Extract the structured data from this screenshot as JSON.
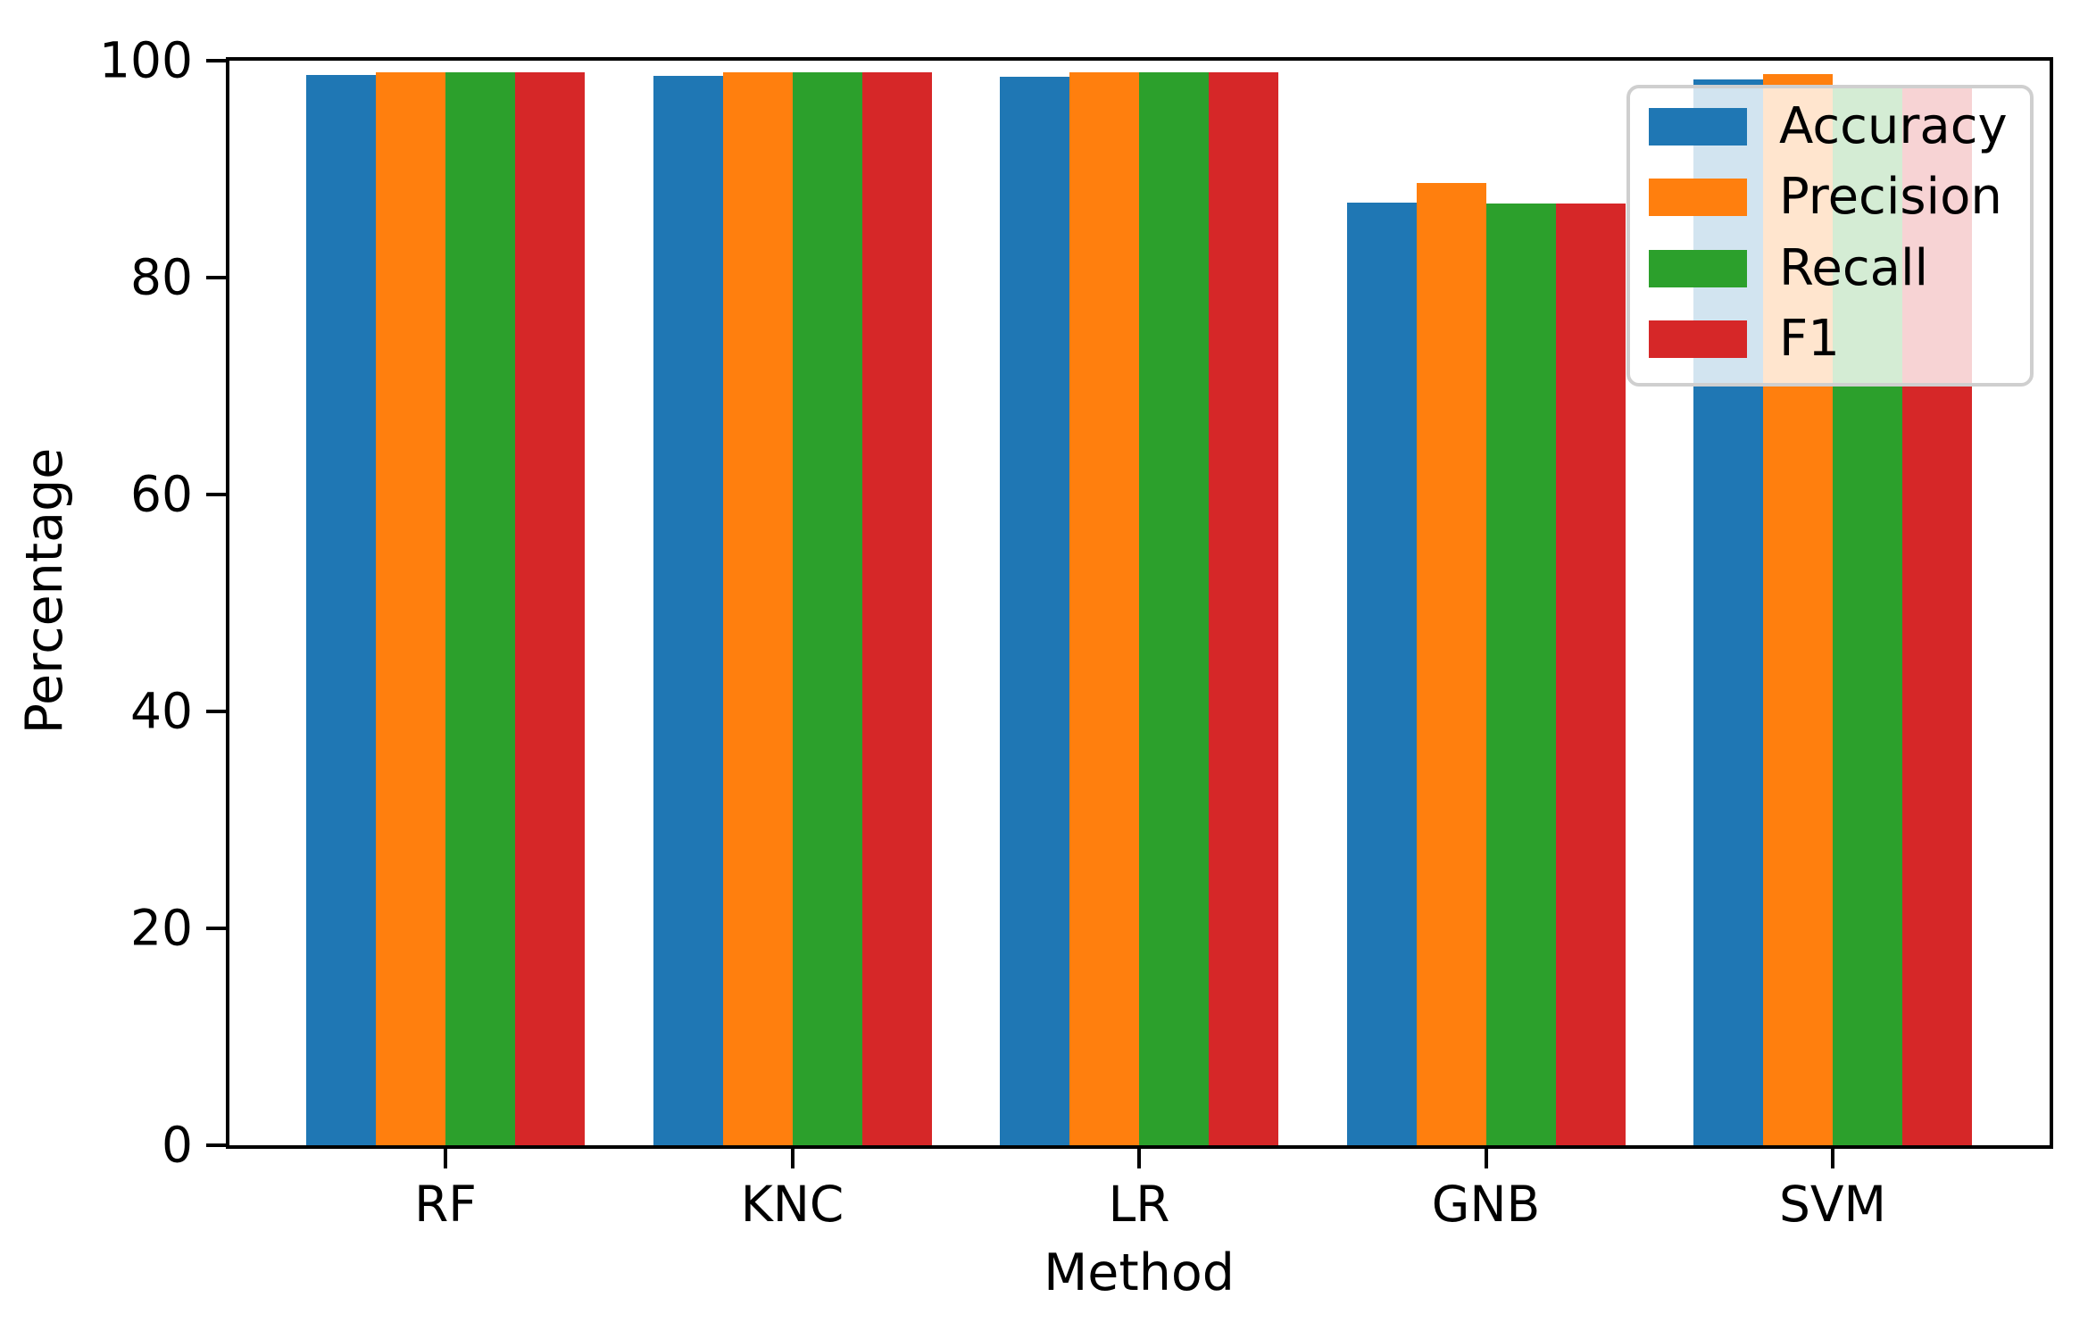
{
  "chart_data": {
    "type": "bar",
    "title": "",
    "xlabel": "Method",
    "ylabel": "Percentage",
    "categories": [
      "RF",
      "KNC",
      "LR",
      "GNB",
      "SVM"
    ],
    "series": [
      {
        "name": "Accuracy",
        "color": "#1f77b4",
        "values": [
          98.7,
          98.6,
          98.5,
          86.9,
          98.3
        ]
      },
      {
        "name": "Precision",
        "color": "#ff7f0e",
        "values": [
          98.9,
          98.9,
          98.9,
          88.7,
          98.8
        ]
      },
      {
        "name": "Recall",
        "color": "#2ca02c",
        "values": [
          98.9,
          98.9,
          98.9,
          86.8,
          97.8
        ]
      },
      {
        "name": "F1",
        "color": "#d62728",
        "values": [
          98.9,
          98.9,
          98.9,
          86.8,
          97.8
        ]
      }
    ],
    "ylim": [
      0,
      100
    ],
    "yticks": [
      0,
      20,
      40,
      60,
      80,
      100
    ],
    "grid": false,
    "legend_position": "upper right",
    "legend_frame_alpha": 0.8,
    "spine_color": "#000000",
    "background_color": "#ffffff"
  }
}
